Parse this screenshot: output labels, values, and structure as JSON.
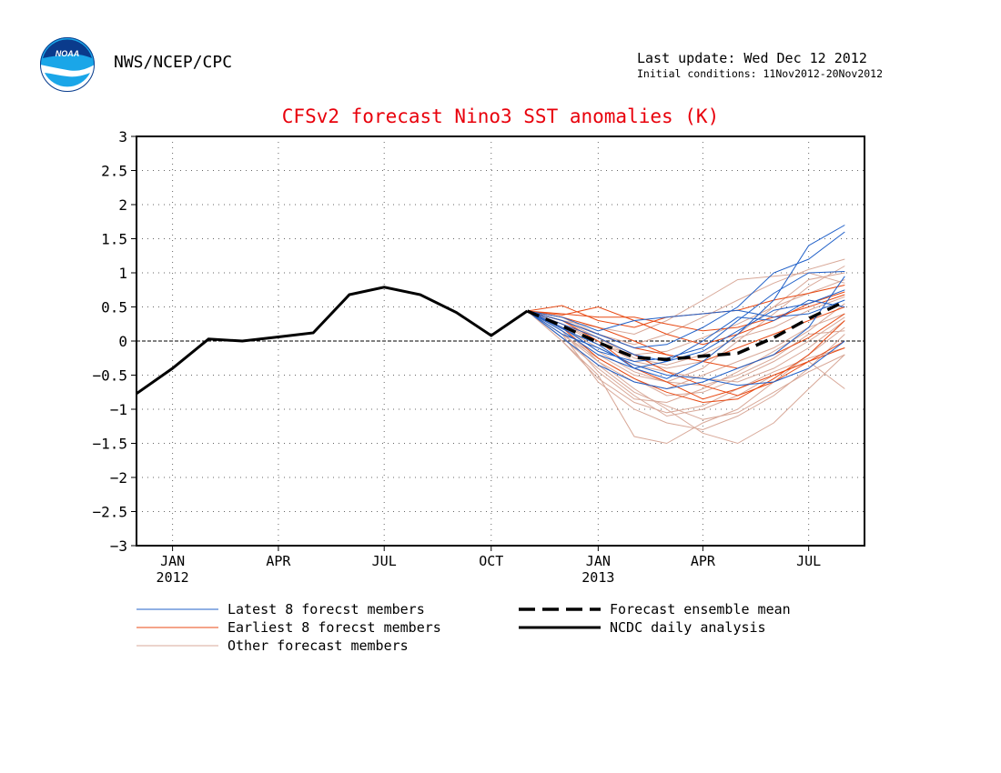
{
  "header": {
    "org": "NWS/NCEP/CPC",
    "last_update": "Last update: Wed Dec 12 2012",
    "initial_conditions": "Initial conditions: 11Nov2012-20Nov2012",
    "logo_text": "NOAA"
  },
  "chart_data": {
    "type": "line",
    "title": "CFSv2 forecast Nino3 SST anomalies (K)",
    "xlabel": "",
    "ylabel": "",
    "ylim": [
      -3,
      3
    ],
    "yticks": [
      -3,
      -2.5,
      -2,
      -1.5,
      -1,
      -0.5,
      0,
      0.5,
      1,
      1.5,
      2,
      2.5,
      3
    ],
    "ytick_labels": [
      "−3",
      "−2.5",
      "−2",
      "−1.5",
      "−1",
      "−0.5",
      "0",
      "0.5",
      "1",
      "1.5",
      "2",
      "2.5",
      "3"
    ],
    "x_range": [
      "2011-12-15",
      "2013-09-01"
    ],
    "xticks": [
      {
        "date": "2012-01-15",
        "label": "JAN",
        "year": "2012"
      },
      {
        "date": "2012-04-15",
        "label": "APR",
        "year": ""
      },
      {
        "date": "2012-07-15",
        "label": "JUL",
        "year": ""
      },
      {
        "date": "2012-10-15",
        "label": "OCT",
        "year": ""
      },
      {
        "date": "2013-01-15",
        "label": "JAN",
        "year": "2013"
      },
      {
        "date": "2013-04-15",
        "label": "APR",
        "year": ""
      },
      {
        "date": "2013-07-15",
        "label": "JUL",
        "year": ""
      }
    ],
    "grid": true,
    "zero_line": true,
    "legend": {
      "placement": "below",
      "entries": [
        {
          "label": "Latest 8 forecst members",
          "color": "#2060c8",
          "style": "thin"
        },
        {
          "label": "Earliest 8 forecst members",
          "color": "#e84a14",
          "style": "thin"
        },
        {
          "label": "Other forecast members",
          "color": "#d8a898",
          "style": "thin"
        },
        {
          "label": "Forecast ensemble mean",
          "color": "#000000",
          "style": "dashed"
        },
        {
          "label": "NCDC daily analysis",
          "color": "#000000",
          "style": "solid"
        }
      ]
    },
    "colors": {
      "title": "#e8000b",
      "latest": "#2060c8",
      "earliest": "#e84a14",
      "other": "#d8a898",
      "mean": "#000000",
      "analysis": "#000000"
    },
    "forecast_months": [
      "2012-11-15",
      "2012-12-15",
      "2013-01-15",
      "2013-02-15",
      "2013-03-15",
      "2013-04-15",
      "2013-05-15",
      "2013-06-15",
      "2013-07-15",
      "2013-08-15"
    ],
    "series": {
      "analysis": {
        "name": "NCDC daily analysis",
        "x": [
          "2011-12-15",
          "2012-01-15",
          "2012-02-15",
          "2012-03-15",
          "2012-04-15",
          "2012-05-15",
          "2012-06-15",
          "2012-07-15",
          "2012-08-15",
          "2012-09-15",
          "2012-10-15",
          "2012-11-15"
        ],
        "y": [
          -0.77,
          -0.4,
          0.03,
          0.0,
          0.06,
          0.12,
          0.68,
          0.79,
          0.68,
          0.42,
          0.08,
          0.44
        ]
      },
      "mean": {
        "name": "Forecast ensemble mean",
        "y": [
          0.44,
          0.22,
          -0.02,
          -0.24,
          -0.27,
          -0.22,
          -0.18,
          0.05,
          0.33,
          0.58
        ]
      },
      "latest": [
        [
          0.44,
          0.18,
          -0.05,
          -0.4,
          -0.55,
          -0.3,
          0.1,
          0.6,
          1.4,
          1.7
        ],
        [
          0.44,
          0.3,
          0.1,
          -0.1,
          -0.05,
          0.2,
          0.5,
          1.0,
          1.2,
          1.6
        ],
        [
          0.44,
          0.05,
          -0.35,
          -0.6,
          -0.7,
          -0.6,
          -0.4,
          -0.2,
          0.2,
          0.95
        ],
        [
          0.44,
          0.2,
          -0.15,
          -0.3,
          -0.25,
          -0.1,
          0.3,
          0.7,
          1.0,
          1.02
        ],
        [
          0.44,
          0.1,
          -0.1,
          -0.35,
          -0.5,
          -0.55,
          -0.65,
          -0.6,
          -0.4,
          0.0
        ],
        [
          0.44,
          0.25,
          0.05,
          -0.2,
          -0.3,
          -0.15,
          0.15,
          0.45,
          0.55,
          0.75
        ],
        [
          0.44,
          0.15,
          -0.2,
          -0.4,
          -0.3,
          0.0,
          0.35,
          0.3,
          0.6,
          0.5
        ],
        [
          0.44,
          0.35,
          0.15,
          0.3,
          0.35,
          0.4,
          0.45,
          0.35,
          0.4,
          0.6
        ]
      ],
      "earliest": [
        [
          0.44,
          0.52,
          0.3,
          0.2,
          0.35,
          0.4,
          0.45,
          0.6,
          0.7,
          0.82
        ],
        [
          0.44,
          0.3,
          0.0,
          -0.4,
          -0.6,
          -0.85,
          -0.7,
          -0.5,
          -0.3,
          -0.1
        ],
        [
          0.44,
          0.35,
          0.2,
          0.0,
          -0.2,
          -0.3,
          -0.1,
          0.1,
          0.3,
          0.5
        ],
        [
          0.44,
          0.25,
          0.05,
          -0.2,
          -0.45,
          -0.65,
          -0.8,
          -0.6,
          -0.3,
          0.0
        ],
        [
          0.44,
          0.4,
          0.35,
          0.35,
          0.25,
          0.15,
          0.2,
          0.35,
          0.5,
          0.68
        ],
        [
          0.44,
          0.2,
          -0.25,
          -0.55,
          -0.75,
          -0.9,
          -0.85,
          -0.55,
          -0.2,
          0.3
        ],
        [
          0.44,
          0.38,
          0.5,
          0.3,
          0.1,
          -0.05,
          0.1,
          0.3,
          0.55,
          0.72
        ],
        [
          0.44,
          0.3,
          0.1,
          -0.1,
          -0.2,
          -0.3,
          -0.4,
          -0.2,
          0.05,
          0.4
        ]
      ],
      "other": [
        [
          0.44,
          0.1,
          -0.6,
          -1.0,
          -1.2,
          -1.3,
          -1.1,
          -0.8,
          -0.4,
          0.1
        ],
        [
          0.44,
          0.0,
          -0.5,
          -1.4,
          -1.5,
          -1.2,
          -1.0,
          -0.6,
          -0.2,
          0.2
        ],
        [
          0.44,
          0.2,
          -0.3,
          -0.7,
          -1.0,
          -1.35,
          -1.5,
          -1.2,
          -0.7,
          -0.2
        ],
        [
          0.44,
          0.15,
          -0.2,
          -0.5,
          -0.6,
          -0.4,
          0.0,
          0.4,
          0.8,
          1.1
        ],
        [
          0.44,
          0.25,
          0.0,
          -0.3,
          -0.4,
          -0.3,
          0.1,
          0.5,
          0.9,
          1.0
        ],
        [
          0.44,
          0.05,
          -0.4,
          -0.8,
          -1.1,
          -1.0,
          -0.8,
          -0.5,
          -0.3,
          -0.7
        ],
        [
          0.44,
          0.3,
          0.2,
          0.1,
          0.3,
          0.6,
          0.9,
          0.95,
          1.0,
          0.85
        ],
        [
          0.44,
          0.1,
          -0.3,
          -0.6,
          -0.7,
          -0.5,
          -0.3,
          -0.1,
          0.2,
          0.4
        ],
        [
          0.44,
          0.2,
          -0.1,
          -0.35,
          -0.45,
          -0.55,
          -0.6,
          -0.4,
          -0.1,
          0.3
        ],
        [
          0.44,
          0.0,
          -0.55,
          -0.9,
          -1.05,
          -0.95,
          -0.7,
          -0.45,
          -0.25,
          -0.1
        ],
        [
          0.44,
          0.35,
          0.1,
          -0.05,
          0.1,
          0.35,
          0.6,
          0.85,
          1.05,
          1.2
        ],
        [
          0.44,
          0.15,
          -0.45,
          -0.85,
          -0.9,
          -0.7,
          -0.45,
          -0.15,
          0.15,
          0.55
        ],
        [
          0.44,
          0.25,
          -0.05,
          -0.2,
          -0.15,
          0.05,
          0.25,
          0.5,
          0.7,
          0.9
        ],
        [
          0.44,
          0.05,
          -0.35,
          -0.75,
          -0.95,
          -1.15,
          -1.05,
          -0.75,
          -0.45,
          -0.2
        ],
        [
          0.44,
          0.3,
          0.05,
          -0.25,
          -0.35,
          -0.2,
          0.05,
          0.2,
          0.45,
          0.65
        ],
        [
          0.44,
          0.1,
          -0.25,
          -0.55,
          -0.8,
          -0.75,
          -0.55,
          -0.3,
          0.0,
          0.35
        ],
        [
          0.44,
          0.2,
          -0.15,
          -0.45,
          -0.6,
          -0.65,
          -0.5,
          -0.25,
          0.1,
          0.15
        ]
      ]
    }
  }
}
